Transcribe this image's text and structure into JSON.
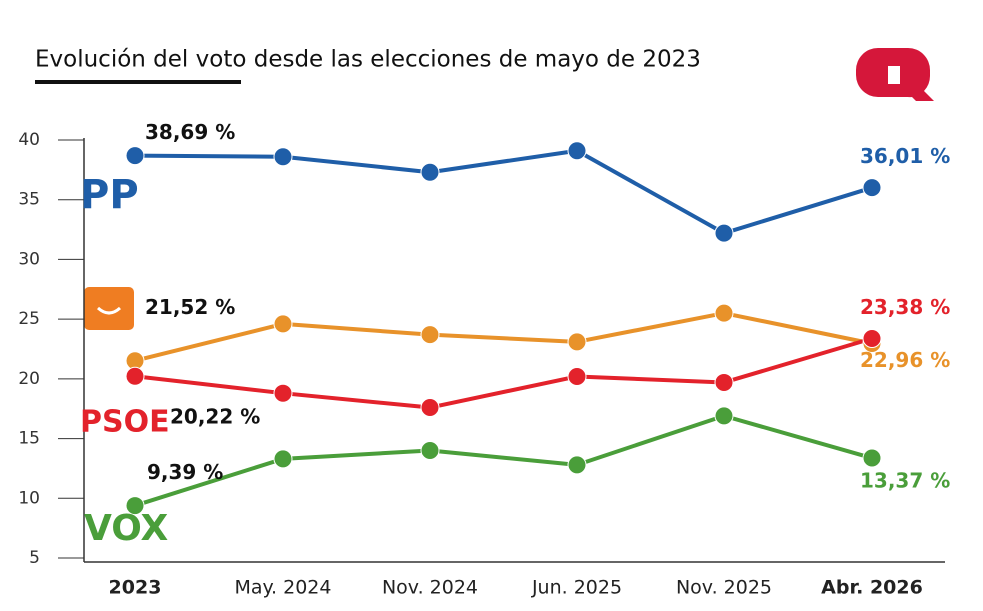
{
  "chart_data": {
    "type": "line",
    "title": "Evolución del voto desde las elecciones de mayo de 2023",
    "categories": [
      "2023",
      "May. 2024",
      "Nov. 2024",
      "Jun. 2025",
      "Nov. 2025",
      "Abr. 2026"
    ],
    "ylim": [
      5,
      40
    ],
    "yticks": [
      5,
      10,
      15,
      20,
      25,
      30,
      35,
      40
    ],
    "series": [
      {
        "name": "PP",
        "color": "#1f5ea8",
        "values": [
          38.69,
          38.6,
          37.3,
          39.1,
          32.2,
          36.01
        ],
        "value_labels": [
          "38,69 %",
          null,
          null,
          null,
          null,
          "36,01 %"
        ]
      },
      {
        "color": "#e8922a",
        "values": [
          21.52,
          24.6,
          23.7,
          23.1,
          25.5,
          22.96
        ],
        "value_labels": [
          "21,52 %",
          null,
          null,
          null,
          null,
          "22,96 %"
        ]
      },
      {
        "name": "PSOE",
        "color": "#e3222b",
        "values": [
          20.22,
          18.8,
          17.6,
          20.2,
          19.7,
          23.38
        ],
        "value_labels": [
          "20,22 %",
          null,
          null,
          null,
          null,
          "23,38 %"
        ]
      },
      {
        "name": "VOX",
        "color": "#4a9e3a",
        "values": [
          9.39,
          13.3,
          14.0,
          12.8,
          16.9,
          13.37
        ],
        "value_labels": [
          "9,39 %",
          null,
          null,
          null,
          null,
          "13,37 %"
        ]
      }
    ]
  }
}
